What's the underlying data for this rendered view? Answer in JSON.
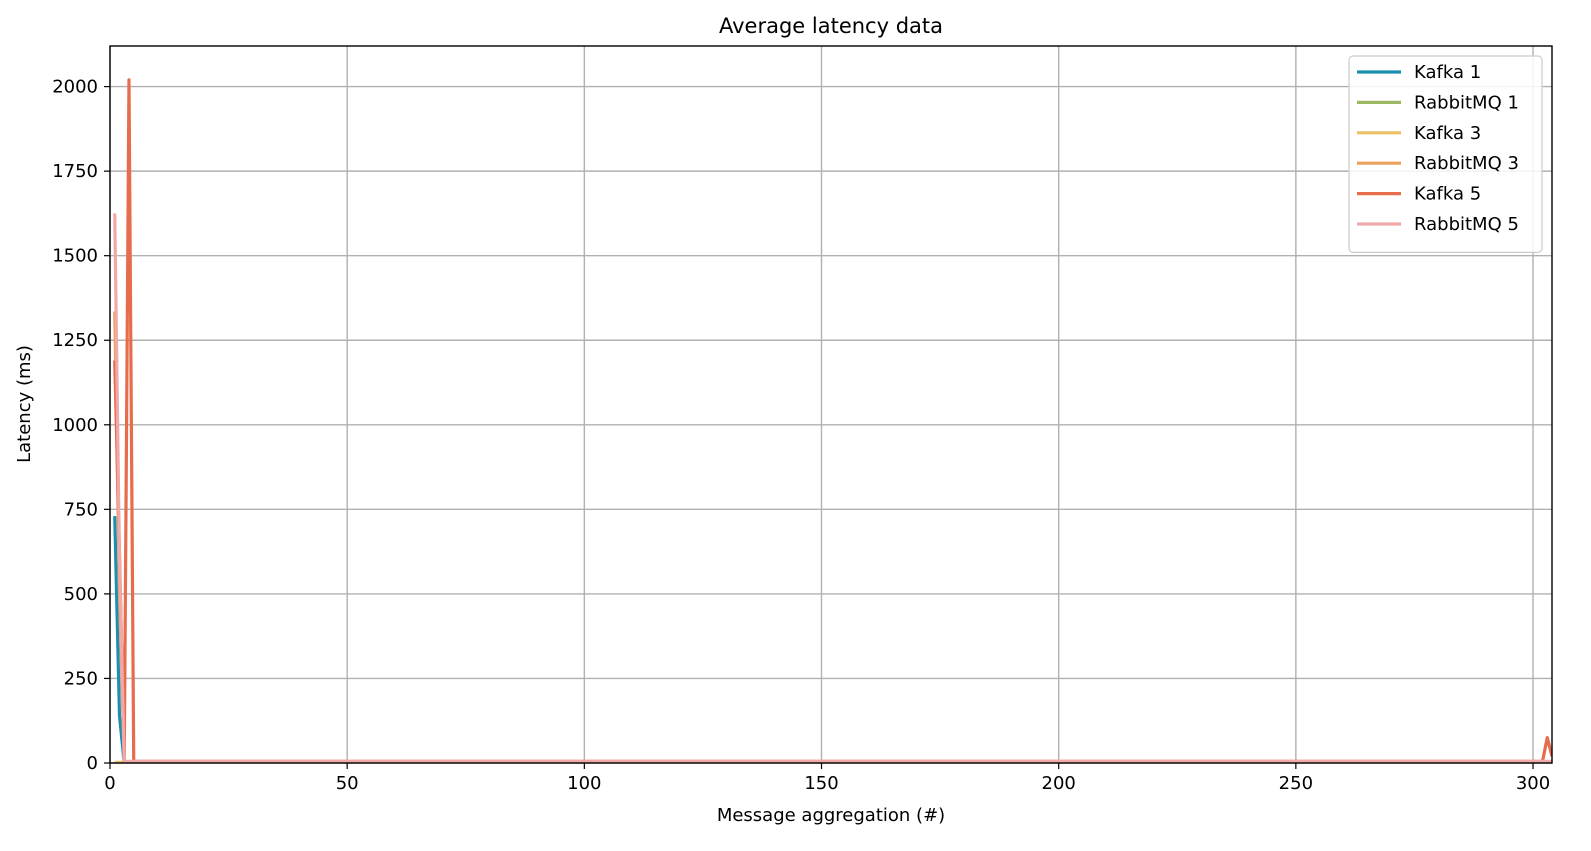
{
  "chart_data": {
    "type": "line",
    "title": "Average latency data",
    "xlabel": "Message aggregation (#)",
    "ylabel": "Latency (ms)",
    "xlim": [
      0,
      304
    ],
    "ylim": [
      0,
      2120
    ],
    "xticks": [
      0,
      50,
      100,
      150,
      200,
      250,
      300
    ],
    "yticks": [
      0,
      250,
      500,
      750,
      1000,
      1250,
      1500,
      1750,
      2000
    ],
    "grid": true,
    "legend_position": "top-right",
    "series": [
      {
        "name": "Kafka 1",
        "color": "#1a8fb0",
        "points": [
          [
            1,
            730
          ],
          [
            2,
            140
          ],
          [
            3,
            0
          ],
          [
            4,
            0
          ],
          [
            5,
            0
          ],
          [
            304,
            0
          ]
        ]
      },
      {
        "name": "RabbitMQ 1",
        "color": "#9bb862",
        "points": [
          [
            1,
            0
          ],
          [
            2,
            0
          ],
          [
            3,
            0
          ],
          [
            4,
            0
          ],
          [
            5,
            0
          ],
          [
            304,
            0
          ]
        ]
      },
      {
        "name": "Kafka 3",
        "color": "#ecc063",
        "points": [
          [
            1,
            2
          ],
          [
            2,
            2
          ],
          [
            3,
            2
          ],
          [
            4,
            2
          ],
          [
            5,
            2
          ],
          [
            304,
            2
          ]
        ]
      },
      {
        "name": "RabbitMQ 3",
        "color": "#eba25c",
        "points": [
          [
            1,
            1335
          ],
          [
            2,
            500
          ],
          [
            3,
            0
          ],
          [
            4,
            0
          ],
          [
            5,
            0
          ],
          [
            304,
            0
          ]
        ]
      },
      {
        "name": "Kafka 5",
        "color": "#e66c4c",
        "points": [
          [
            1,
            1190
          ],
          [
            2,
            620
          ],
          [
            3,
            5
          ],
          [
            4,
            2020
          ],
          [
            5,
            5
          ],
          [
            6,
            5
          ],
          [
            302,
            5
          ],
          [
            303,
            75
          ],
          [
            304,
            20
          ]
        ]
      },
      {
        "name": "RabbitMQ 5",
        "color": "#f0a8a8",
        "points": [
          [
            1,
            1625
          ],
          [
            2,
            600
          ],
          [
            3,
            5
          ],
          [
            4,
            5
          ],
          [
            5,
            5
          ],
          [
            304,
            5
          ]
        ]
      }
    ]
  }
}
